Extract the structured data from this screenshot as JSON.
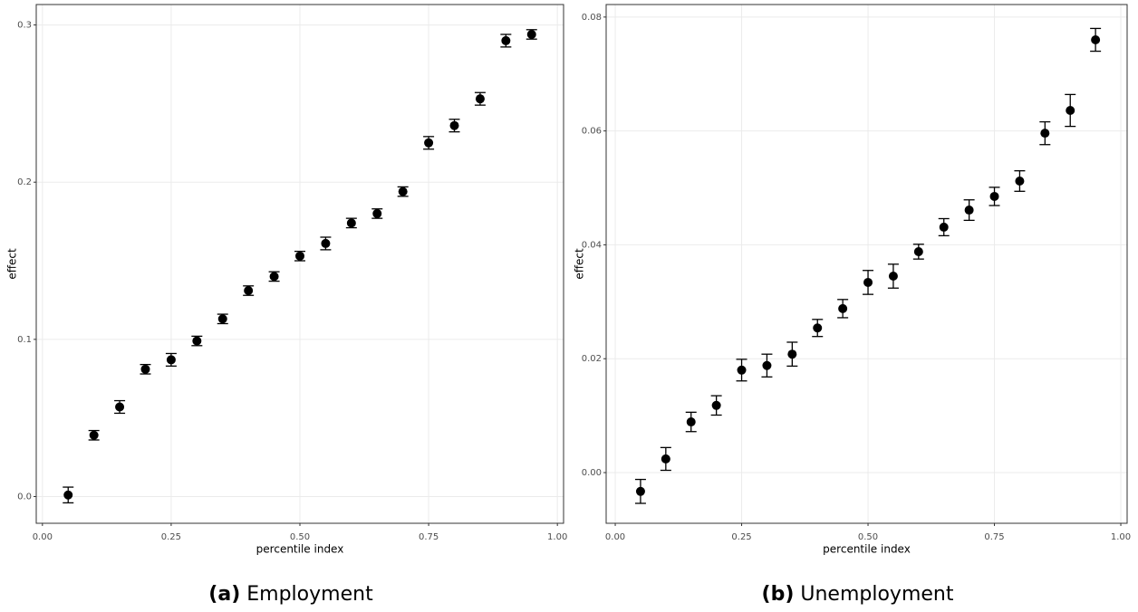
{
  "chart_data": [
    {
      "type": "scatter",
      "caption_label": "(a)",
      "caption": "Employment",
      "xlabel": "percentile index",
      "ylabel": "effect",
      "x": [
        0.05,
        0.1,
        0.15,
        0.2,
        0.25,
        0.3,
        0.35,
        0.4,
        0.45,
        0.5,
        0.55,
        0.6,
        0.65,
        0.7,
        0.75,
        0.8,
        0.85,
        0.9,
        0.95
      ],
      "y": [
        0.001,
        0.039,
        0.057,
        0.081,
        0.087,
        0.099,
        0.113,
        0.131,
        0.14,
        0.153,
        0.161,
        0.174,
        0.18,
        0.194,
        0.225,
        0.236,
        0.253,
        0.29,
        0.294
      ],
      "errors": [
        0.005,
        0.003,
        0.004,
        0.003,
        0.004,
        0.003,
        0.003,
        0.003,
        0.003,
        0.003,
        0.004,
        0.003,
        0.003,
        0.003,
        0.004,
        0.004,
        0.004,
        0.004,
        0.003
      ],
      "color": "#000000",
      "grid": true,
      "xlim": [
        -0.012,
        1.012
      ],
      "xticks": [
        {
          "value": 0,
          "label": "0.00"
        },
        0.25,
        {
          "value": 0.5,
          "label": "0.50"
        },
        0.75,
        {
          "value": 1,
          "label": "1.00"
        }
      ],
      "ylim": [
        -0.017,
        0.313
      ],
      "yticks": [
        {
          "value": 0,
          "label": "0.0"
        },
        0.1,
        0.2,
        0.3
      ]
    },
    {
      "type": "scatter",
      "caption_label": "(b)",
      "caption": "Unemployment",
      "xlabel": "percentile index",
      "ylabel": "effect",
      "x": [
        0.05,
        0.1,
        0.15,
        0.2,
        0.25,
        0.3,
        0.35,
        0.4,
        0.45,
        0.5,
        0.55,
        0.6,
        0.65,
        0.7,
        0.75,
        0.8,
        0.85,
        0.9,
        0.95
      ],
      "y": [
        -0.0033,
        0.0024,
        0.0089,
        0.0118,
        0.018,
        0.0188,
        0.0208,
        0.0254,
        0.0288,
        0.0334,
        0.0345,
        0.0388,
        0.0431,
        0.0461,
        0.0485,
        0.0512,
        0.0596,
        0.0636,
        0.076
      ],
      "errors": [
        0.0021,
        0.002,
        0.0017,
        0.0017,
        0.0019,
        0.002,
        0.0021,
        0.0015,
        0.0016,
        0.0021,
        0.0021,
        0.0013,
        0.0015,
        0.0018,
        0.0016,
        0.0018,
        0.002,
        0.0028,
        0.002
      ],
      "color": "#000000",
      "grid": true,
      "xlim": [
        -0.018,
        1.0125
      ],
      "xticks": [
        {
          "value": 0,
          "label": "0.00"
        },
        0.25,
        {
          "value": 0.5,
          "label": "0.50"
        },
        0.75,
        {
          "value": 1,
          "label": "1.00"
        }
      ],
      "ylim": [
        -0.0089,
        0.0822
      ],
      "yticks": [
        {
          "value": 0,
          "label": "0.00"
        },
        0.02,
        0.04,
        0.06,
        0.08
      ]
    }
  ]
}
